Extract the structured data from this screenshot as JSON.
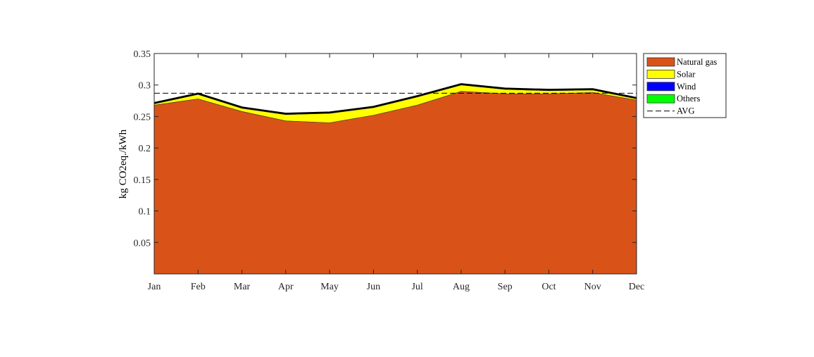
{
  "chart_data": {
    "type": "area",
    "title": "",
    "xlabel": "",
    "ylabel": "kg CO2eq./kWh",
    "categories": [
      "Jan",
      "Feb",
      "Mar",
      "Apr",
      "May",
      "Jun",
      "Jul",
      "Aug",
      "Sep",
      "Oct",
      "Nov",
      "Dec"
    ],
    "ylim": [
      0,
      0.35
    ],
    "yticks": [
      0.05,
      0.1,
      0.15,
      0.2,
      0.25,
      0.3,
      0.35
    ],
    "ytick_labels": [
      "0.05",
      "0.1",
      "0.15",
      "0.2",
      "0.25",
      "0.3",
      "0.35"
    ],
    "stacked": true,
    "grid": false,
    "legend_position": "outside-top-right",
    "series": [
      {
        "name": "Natural gas",
        "color": "#D95319",
        "values": [
          0.268,
          0.278,
          0.258,
          0.243,
          0.24,
          0.252,
          0.268,
          0.29,
          0.286,
          0.286,
          0.288,
          0.276
        ]
      },
      {
        "name": "Solar",
        "color": "#FFFF00",
        "values": [
          0.002,
          0.007,
          0.005,
          0.01,
          0.015,
          0.012,
          0.013,
          0.01,
          0.007,
          0.005,
          0.004,
          0.002
        ]
      },
      {
        "name": "Wind",
        "color": "#0000FF",
        "values": [
          0.001,
          0.001,
          0.001,
          0.001,
          0.001,
          0.001,
          0.001,
          0.001,
          0.001,
          0.001,
          0.001,
          0.001
        ]
      },
      {
        "name": "Others",
        "color": "#00FF00",
        "values": [
          0.0005,
          0.0005,
          0.0005,
          0.0005,
          0.0005,
          0.0005,
          0.0005,
          0.0005,
          0.0005,
          0.0005,
          0.0005,
          0.0005
        ]
      }
    ],
    "avg": {
      "name": "AVG",
      "value": 0.287
    }
  }
}
